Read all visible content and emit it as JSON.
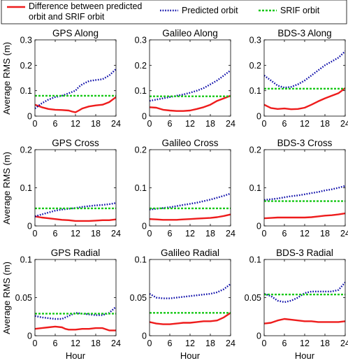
{
  "colors": {
    "difference": "#ee1c1c",
    "predicted": "#0a0aa8",
    "srif": "#18c818",
    "axis": "#000000",
    "legend_border": "#000000"
  },
  "legend": {
    "difference_label_line1": "Difference between predicted",
    "difference_label_line2": "orbit and SRIF orbit",
    "predicted_label": "Predicted orbit",
    "srif_label": "SRIF orbit"
  },
  "row_ylabels": [
    "Average RMS (m)",
    "Average RMS (m)",
    "Average RMS (m)"
  ],
  "xlabel": "Hour",
  "chart_data": [
    {
      "type": "line",
      "title": "GPS Along",
      "xlabel": "",
      "ylabel": "Average RMS (m)",
      "xlim": [
        0,
        24
      ],
      "ylim": [
        0,
        0.3
      ],
      "xticks": [
        0,
        6,
        12,
        18,
        24
      ],
      "xtick_labels": [
        "0",
        "6",
        "12",
        "18",
        "24"
      ],
      "yticks": [
        0,
        0.1,
        0.2,
        0.3
      ],
      "ytick_labels": [
        "0",
        "0.1",
        "0.2",
        "0.3"
      ],
      "series": [
        {
          "name": "Difference between predicted orbit and SRIF orbit",
          "style": "solid",
          "x": [
            0,
            2,
            4,
            6,
            8,
            10,
            11,
            12,
            13,
            14,
            16,
            18,
            20,
            22,
            24
          ],
          "y": [
            0.045,
            0.035,
            0.028,
            0.025,
            0.024,
            0.022,
            0.018,
            0.015,
            0.022,
            0.03,
            0.038,
            0.042,
            0.045,
            0.055,
            0.075
          ]
        },
        {
          "name": "Predicted orbit",
          "style": "dotted",
          "x": [
            0,
            2,
            4,
            6,
            8,
            10,
            12,
            13,
            14,
            16,
            18,
            20,
            22,
            24
          ],
          "y": [
            0.03,
            0.05,
            0.065,
            0.075,
            0.08,
            0.09,
            0.1,
            0.115,
            0.125,
            0.138,
            0.142,
            0.145,
            0.16,
            0.185
          ]
        },
        {
          "name": "SRIF orbit",
          "style": "dashed",
          "x": [
            0,
            24
          ],
          "y": [
            0.08,
            0.08
          ]
        }
      ]
    },
    {
      "type": "line",
      "title": "Galileo Along",
      "xlabel": "",
      "ylabel": "",
      "xlim": [
        0,
        24
      ],
      "ylim": [
        0,
        0.3
      ],
      "xticks": [
        0,
        6,
        12,
        18,
        24
      ],
      "xtick_labels": [
        "0",
        "6",
        "12",
        "18",
        "24"
      ],
      "yticks": [
        0,
        0.1,
        0.2,
        0.3
      ],
      "ytick_labels": [
        "0",
        "0.1",
        "0.2",
        "0.3"
      ],
      "series": [
        {
          "name": "Difference between predicted orbit and SRIF orbit",
          "style": "solid",
          "x": [
            0,
            2,
            4,
            6,
            8,
            10,
            12,
            14,
            16,
            18,
            20,
            22,
            24
          ],
          "y": [
            0.035,
            0.033,
            0.025,
            0.022,
            0.02,
            0.02,
            0.022,
            0.028,
            0.035,
            0.045,
            0.06,
            0.07,
            0.08
          ]
        },
        {
          "name": "Predicted orbit",
          "style": "dotted",
          "x": [
            0,
            2,
            4,
            6,
            8,
            10,
            12,
            14,
            16,
            18,
            20,
            22,
            24
          ],
          "y": [
            0.06,
            0.065,
            0.07,
            0.075,
            0.08,
            0.085,
            0.092,
            0.1,
            0.11,
            0.125,
            0.14,
            0.16,
            0.18
          ]
        },
        {
          "name": "SRIF orbit",
          "style": "dashed",
          "x": [
            0,
            24
          ],
          "y": [
            0.078,
            0.078
          ]
        }
      ]
    },
    {
      "type": "line",
      "title": "BDS-3 Along",
      "xlabel": "",
      "ylabel": "",
      "xlim": [
        0,
        24
      ],
      "ylim": [
        0,
        0.3
      ],
      "xticks": [
        0,
        6,
        12,
        18,
        24
      ],
      "xtick_labels": [
        "0",
        "6",
        "12",
        "18",
        "24"
      ],
      "yticks": [
        0,
        0.1,
        0.2,
        0.3
      ],
      "ytick_labels": [
        "0",
        "0.1",
        "0.2",
        "0.3"
      ],
      "series": [
        {
          "name": "Difference between predicted orbit and SRIF orbit",
          "style": "solid",
          "x": [
            0,
            2,
            4,
            6,
            8,
            10,
            12,
            14,
            16,
            18,
            20,
            22,
            24
          ],
          "y": [
            0.045,
            0.032,
            0.028,
            0.03,
            0.027,
            0.028,
            0.033,
            0.045,
            0.058,
            0.07,
            0.08,
            0.09,
            0.11
          ]
        },
        {
          "name": "Predicted orbit",
          "style": "dotted",
          "x": [
            0,
            2,
            4,
            6,
            8,
            10,
            12,
            14,
            16,
            18,
            20,
            22,
            24
          ],
          "y": [
            0.16,
            0.14,
            0.12,
            0.112,
            0.115,
            0.125,
            0.14,
            0.16,
            0.18,
            0.2,
            0.215,
            0.23,
            0.255
          ]
        },
        {
          "name": "SRIF orbit",
          "style": "dashed",
          "x": [
            0,
            24
          ],
          "y": [
            0.108,
            0.108
          ]
        }
      ]
    },
    {
      "type": "line",
      "title": "GPS Cross",
      "xlabel": "",
      "ylabel": "Average RMS (m)",
      "xlim": [
        0,
        24
      ],
      "ylim": [
        0,
        0.2
      ],
      "xticks": [
        0,
        6,
        12,
        18,
        24
      ],
      "xtick_labels": [
        "0",
        "6",
        "12",
        "18",
        "24"
      ],
      "yticks": [
        0,
        0.1,
        0.2
      ],
      "ytick_labels": [
        "0",
        "0.1",
        "0.2"
      ],
      "series": [
        {
          "name": "Difference between predicted orbit and SRIF orbit",
          "style": "solid",
          "x": [
            0,
            2,
            4,
            6,
            8,
            10,
            12,
            14,
            16,
            18,
            20,
            22,
            24
          ],
          "y": [
            0.025,
            0.022,
            0.02,
            0.018,
            0.016,
            0.015,
            0.013,
            0.013,
            0.013,
            0.014,
            0.015,
            0.015,
            0.017
          ]
        },
        {
          "name": "Predicted orbit",
          "style": "dotted",
          "x": [
            0,
            2,
            4,
            6,
            8,
            10,
            12,
            14,
            16,
            18,
            20,
            22,
            24
          ],
          "y": [
            0.025,
            0.03,
            0.035,
            0.04,
            0.043,
            0.045,
            0.047,
            0.05,
            0.052,
            0.054,
            0.055,
            0.057,
            0.06
          ]
        },
        {
          "name": "SRIF orbit",
          "style": "dashed",
          "x": [
            0,
            24
          ],
          "y": [
            0.046,
            0.046
          ]
        }
      ]
    },
    {
      "type": "line",
      "title": "Galileo Cross",
      "xlabel": "",
      "ylabel": "",
      "xlim": [
        0,
        24
      ],
      "ylim": [
        0,
        0.2
      ],
      "xticks": [
        0,
        6,
        12,
        18,
        24
      ],
      "xtick_labels": [
        "0",
        "6",
        "12",
        "18",
        "24"
      ],
      "yticks": [
        0,
        0.1,
        0.2
      ],
      "ytick_labels": [
        "0",
        "0.1",
        "0.2"
      ],
      "series": [
        {
          "name": "Difference between predicted orbit and SRIF orbit",
          "style": "solid",
          "x": [
            0,
            2,
            4,
            6,
            8,
            10,
            12,
            14,
            16,
            18,
            20,
            22,
            24
          ],
          "y": [
            0.018,
            0.017,
            0.016,
            0.016,
            0.016,
            0.017,
            0.018,
            0.019,
            0.02,
            0.021,
            0.023,
            0.026,
            0.03
          ]
        },
        {
          "name": "Predicted orbit",
          "style": "dotted",
          "x": [
            0,
            2,
            4,
            6,
            8,
            10,
            12,
            14,
            16,
            18,
            20,
            22,
            24
          ],
          "y": [
            0.043,
            0.045,
            0.047,
            0.049,
            0.052,
            0.055,
            0.058,
            0.061,
            0.065,
            0.069,
            0.074,
            0.079,
            0.085
          ]
        },
        {
          "name": "SRIF orbit",
          "style": "dashed",
          "x": [
            0,
            24
          ],
          "y": [
            0.046,
            0.046
          ]
        }
      ]
    },
    {
      "type": "line",
      "title": "BDS-3 Cross",
      "xlabel": "",
      "ylabel": "",
      "xlim": [
        0,
        24
      ],
      "ylim": [
        0,
        0.2
      ],
      "xticks": [
        0,
        6,
        12,
        18,
        24
      ],
      "xtick_labels": [
        "0",
        "6",
        "12",
        "18",
        "24"
      ],
      "yticks": [
        0,
        0.1,
        0.2
      ],
      "ytick_labels": [
        "0",
        "0.1",
        "0.2"
      ],
      "series": [
        {
          "name": "Difference between predicted orbit and SRIF orbit",
          "style": "solid",
          "x": [
            0,
            2,
            4,
            6,
            8,
            10,
            12,
            14,
            16,
            18,
            20,
            22,
            24
          ],
          "y": [
            0.02,
            0.021,
            0.022,
            0.022,
            0.022,
            0.022,
            0.022,
            0.023,
            0.025,
            0.027,
            0.028,
            0.03,
            0.033
          ]
        },
        {
          "name": "Predicted orbit",
          "style": "dotted",
          "x": [
            0,
            2,
            4,
            6,
            8,
            10,
            12,
            14,
            16,
            18,
            20,
            22,
            24
          ],
          "y": [
            0.068,
            0.07,
            0.072,
            0.075,
            0.078,
            0.08,
            0.083,
            0.086,
            0.089,
            0.093,
            0.096,
            0.1,
            0.105
          ]
        },
        {
          "name": "SRIF orbit",
          "style": "dashed",
          "x": [
            0,
            24
          ],
          "y": [
            0.065,
            0.065
          ]
        }
      ]
    },
    {
      "type": "line",
      "title": "GPS Radial",
      "xlabel": "Hour",
      "ylabel": "Average RMS (m)",
      "xlim": [
        0,
        24
      ],
      "ylim": [
        0,
        0.1
      ],
      "xticks": [
        0,
        6,
        12,
        18,
        24
      ],
      "xtick_labels": [
        "0",
        "6",
        "12",
        "18",
        "24"
      ],
      "yticks": [
        0,
        0.05,
        0.1
      ],
      "ytick_labels": [
        "0",
        "0.05",
        "0.1"
      ],
      "series": [
        {
          "name": "Difference between predicted orbit and SRIF orbit",
          "style": "solid",
          "x": [
            0,
            2,
            4,
            6,
            8,
            9,
            10,
            12,
            14,
            16,
            18,
            20,
            22,
            24
          ],
          "y": [
            0.009,
            0.01,
            0.011,
            0.012,
            0.011,
            0.009,
            0.008,
            0.008,
            0.009,
            0.009,
            0.01,
            0.01,
            0.007,
            0.007
          ]
        },
        {
          "name": "Predicted orbit",
          "style": "dotted",
          "x": [
            0,
            2,
            4,
            6,
            8,
            10,
            12,
            14,
            16,
            18,
            20,
            22,
            24
          ],
          "y": [
            0.026,
            0.024,
            0.023,
            0.022,
            0.022,
            0.026,
            0.03,
            0.029,
            0.028,
            0.027,
            0.027,
            0.03,
            0.038
          ]
        },
        {
          "name": "SRIF orbit",
          "style": "dashed",
          "x": [
            0,
            24
          ],
          "y": [
            0.029,
            0.029
          ]
        }
      ]
    },
    {
      "type": "line",
      "title": "Galileo Radial",
      "xlabel": "Hour",
      "ylabel": "",
      "xlim": [
        0,
        24
      ],
      "ylim": [
        0,
        0.1
      ],
      "xticks": [
        0,
        6,
        12,
        18,
        24
      ],
      "xtick_labels": [
        "0",
        "6",
        "12",
        "18",
        "24"
      ],
      "yticks": [
        0,
        0.05,
        0.1
      ],
      "ytick_labels": [
        "0",
        "0.05",
        "0.1"
      ],
      "series": [
        {
          "name": "Difference between predicted orbit and SRIF orbit",
          "style": "solid",
          "x": [
            0,
            2,
            4,
            6,
            8,
            10,
            12,
            14,
            16,
            18,
            20,
            22,
            24
          ],
          "y": [
            0.018,
            0.016,
            0.015,
            0.015,
            0.016,
            0.017,
            0.017,
            0.018,
            0.019,
            0.019,
            0.02,
            0.024,
            0.03
          ]
        },
        {
          "name": "Predicted orbit",
          "style": "dotted",
          "x": [
            0,
            2,
            4,
            6,
            8,
            10,
            12,
            14,
            16,
            18,
            20,
            22,
            24
          ],
          "y": [
            0.055,
            0.05,
            0.049,
            0.049,
            0.05,
            0.051,
            0.052,
            0.053,
            0.054,
            0.055,
            0.057,
            0.061,
            0.068
          ]
        },
        {
          "name": "SRIF orbit",
          "style": "dashed",
          "x": [
            0,
            24
          ],
          "y": [
            0.03,
            0.03
          ]
        }
      ]
    },
    {
      "type": "line",
      "title": "BDS-3 Radial",
      "xlabel": "Hour",
      "ylabel": "",
      "xlim": [
        0,
        24
      ],
      "ylim": [
        0,
        0.1
      ],
      "xticks": [
        0,
        6,
        12,
        18,
        24
      ],
      "xtick_labels": [
        "0",
        "6",
        "12",
        "18",
        "24"
      ],
      "yticks": [
        0,
        0.05,
        0.1
      ],
      "ytick_labels": [
        "0",
        "0.05",
        "0.1"
      ],
      "series": [
        {
          "name": "Difference between predicted orbit and SRIF orbit",
          "style": "solid",
          "x": [
            0,
            2,
            4,
            6,
            8,
            10,
            12,
            14,
            16,
            18,
            20,
            22,
            24
          ],
          "y": [
            0.016,
            0.017,
            0.02,
            0.022,
            0.021,
            0.02,
            0.019,
            0.019,
            0.018,
            0.018,
            0.018,
            0.018,
            0.019
          ]
        },
        {
          "name": "Predicted orbit",
          "style": "dotted",
          "x": [
            0,
            2,
            4,
            6,
            8,
            10,
            12,
            14,
            16,
            18,
            20,
            22,
            24
          ],
          "y": [
            0.055,
            0.052,
            0.046,
            0.044,
            0.046,
            0.05,
            0.056,
            0.058,
            0.058,
            0.058,
            0.058,
            0.06,
            0.07
          ]
        },
        {
          "name": "SRIF orbit",
          "style": "dashed",
          "x": [
            0,
            24
          ],
          "y": [
            0.054,
            0.054
          ]
        }
      ]
    }
  ]
}
